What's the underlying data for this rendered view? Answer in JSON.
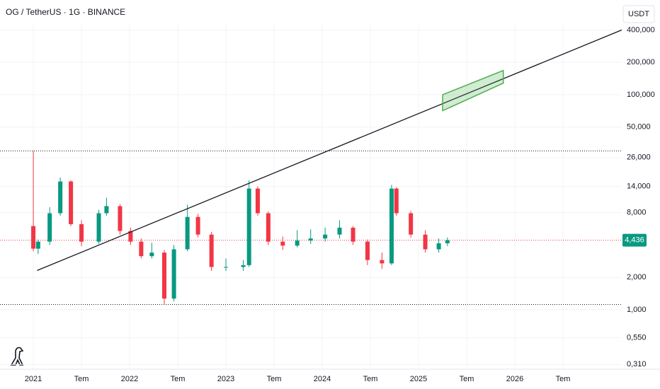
{
  "chart_data": {
    "type": "candlestick",
    "title": "OG / TetherUS · 1G · BINANCE",
    "currency": "USDT",
    "log_scale": true,
    "grid": true,
    "up_color": "#089981",
    "down_color": "#f23645",
    "x": [
      2021.0,
      2021.05,
      2021.17,
      2021.28,
      2021.39,
      2021.5,
      2021.68,
      2021.76,
      2021.9,
      2022.01,
      2022.12,
      2022.23,
      2022.36,
      2022.46,
      2022.6,
      2022.71,
      2022.85,
      2023.0,
      2023.18,
      2023.24,
      2023.33,
      2023.44,
      2023.59,
      2023.74,
      2023.88,
      2024.03,
      2024.18,
      2024.32,
      2024.47,
      2024.62,
      2024.72,
      2024.77,
      2024.92,
      2025.07,
      2025.21,
      2025.3
    ],
    "open": [
      6.0,
      3.7,
      4.3,
      7.9,
      15.6,
      6.25,
      4.3,
      7.9,
      9.2,
      5.4,
      4.3,
      3.15,
      3.4,
      1.27,
      3.65,
      7.3,
      5.0,
      2.5,
      2.5,
      2.6,
      13.4,
      7.9,
      4.3,
      3.95,
      4.4,
      4.6,
      5.0,
      5.8,
      4.3,
      2.9,
      2.7,
      13.4,
      7.9,
      5.0,
      3.65,
      4.15
    ],
    "high": [
      30,
      4.5,
      9,
      17,
      16,
      6.8,
      8.5,
      11,
      9.6,
      5.8,
      4.6,
      4.2,
      3.6,
      4.0,
      9.5,
      7.8,
      5.3,
      3.0,
      2.9,
      16,
      14,
      8.2,
      4.8,
      5.5,
      5.6,
      5.8,
      6.8,
      6.0,
      4.5,
      3.4,
      14.5,
      13.8,
      8.3,
      5.5,
      4.6,
      4.7
    ],
    "low": [
      3.5,
      3.3,
      4.0,
      7.5,
      6.0,
      3.9,
      4.1,
      7.5,
      5.0,
      4.0,
      3.0,
      3.0,
      1.12,
      1.2,
      3.5,
      4.7,
      2.3,
      2.3,
      2.3,
      2.5,
      7.5,
      4.0,
      3.6,
      3.8,
      4.1,
      4.3,
      4.6,
      4.0,
      2.6,
      2.4,
      2.6,
      7.5,
      4.7,
      3.4,
      3.4,
      3.9
    ],
    "close": [
      3.7,
      4.3,
      7.9,
      15.6,
      6.25,
      4.3,
      7.9,
      9.2,
      5.4,
      4.3,
      3.15,
      3.4,
      1.27,
      3.65,
      7.3,
      5.0,
      2.5,
      2.5,
      2.6,
      13.4,
      7.9,
      4.3,
      3.95,
      4.4,
      4.6,
      5.0,
      5.8,
      4.3,
      2.9,
      2.7,
      13.4,
      7.9,
      5.0,
      3.65,
      4.15,
      4.436
    ],
    "xlim": [
      2020.654,
      2027.11
    ],
    "ylim": [
      0.28,
      760
    ],
    "xticks": [
      {
        "value": 2021,
        "label": "2021"
      },
      {
        "value": 2021.5,
        "label": "Tem"
      },
      {
        "value": 2022,
        "label": "2022"
      },
      {
        "value": 2022.5,
        "label": "Tem"
      },
      {
        "value": 2023,
        "label": "2023"
      },
      {
        "value": 2023.5,
        "label": "Tem"
      },
      {
        "value": 2024,
        "label": "2024"
      },
      {
        "value": 2024.5,
        "label": "Tem"
      },
      {
        "value": 2025,
        "label": "2025"
      },
      {
        "value": 2025.5,
        "label": "Tem"
      },
      {
        "value": 2026,
        "label": "2026"
      },
      {
        "value": 2026.5,
        "label": "Tem"
      }
    ],
    "yticks": [
      {
        "value": 400,
        "label": "400,000"
      },
      {
        "value": 200,
        "label": "200,000"
      },
      {
        "value": 100,
        "label": "100,000"
      },
      {
        "value": 50,
        "label": "50,000"
      },
      {
        "value": 26,
        "label": "26,000"
      },
      {
        "value": 14,
        "label": "14,000"
      },
      {
        "value": 8,
        "label": "8,000"
      },
      {
        "value": 2,
        "label": "2,000"
      },
      {
        "value": 1,
        "label": "1,000"
      },
      {
        "value": 0.55,
        "label": "0,550"
      },
      {
        "value": 0.31,
        "label": "0,310"
      }
    ],
    "last_price": {
      "value": 4.436,
      "label": "4,436"
    },
    "levels": [
      30,
      1.12
    ],
    "trendline": {
      "x": [
        2021.04,
        2027.11
      ],
      "y": [
        2.32,
        400
      ]
    },
    "target_zone": {
      "x": [
        2025.25,
        2025.88
      ],
      "top": [
        100,
        168
      ],
      "bottom": [
        71,
        128
      ]
    }
  }
}
